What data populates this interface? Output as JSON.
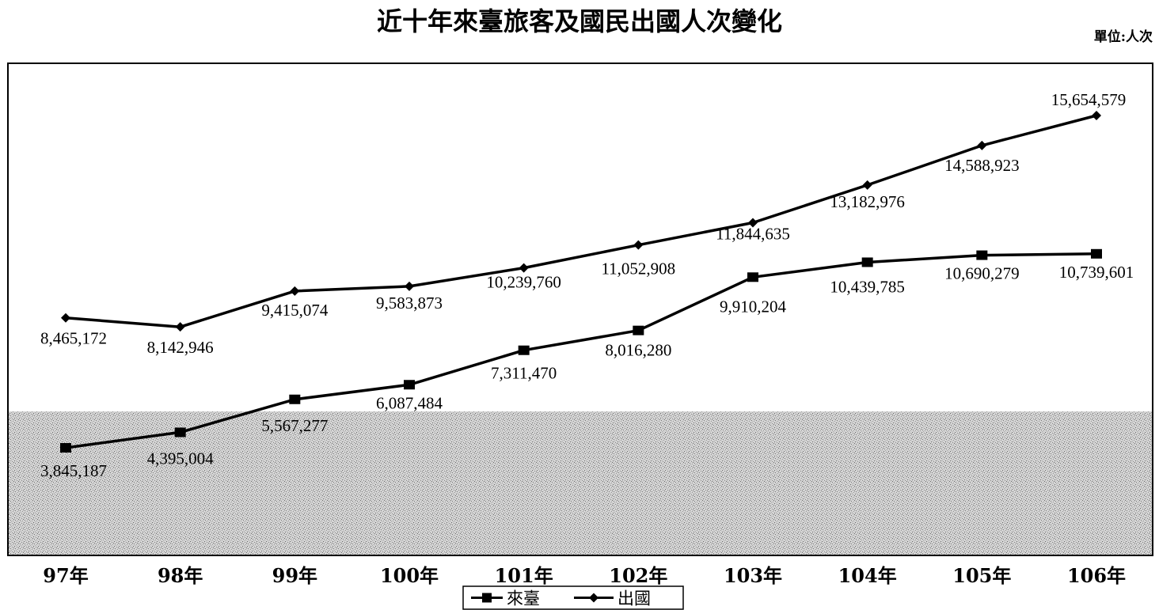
{
  "chart_data": {
    "type": "line",
    "title": "近十年來臺旅客及國民出國人次變化",
    "unit": "單位:人次",
    "categories": [
      "97年",
      "98年",
      "99年",
      "100年",
      "101年",
      "102年",
      "103年",
      "104年",
      "105年",
      "106年"
    ],
    "series": [
      {
        "name": "來臺",
        "marker": "square",
        "values": [
          3845187,
          4395004,
          5567277,
          6087484,
          7311470,
          8016280,
          9910204,
          10439785,
          10690279,
          10739601
        ],
        "labels": [
          "3,845,187",
          "4,395,004",
          "5,567,277",
          "6,087,484",
          "7,311,470",
          "8,016,280",
          "9,910,204",
          "10,439,785",
          "10,690,279",
          "10,739,601"
        ]
      },
      {
        "name": "出國",
        "marker": "diamond",
        "values": [
          8465172,
          8142946,
          9415074,
          9583873,
          10239760,
          11052908,
          11844635,
          13182976,
          14588923,
          15654579
        ],
        "labels": [
          "8,465,172",
          "8,142,946",
          "9,415,074",
          "9,583,873",
          "10,239,760",
          "11,052,908",
          "11,844,635",
          "13,182,976",
          "14,588,923",
          "15,654,579"
        ]
      }
    ],
    "legend_position": "bottom-center",
    "grid": false
  }
}
